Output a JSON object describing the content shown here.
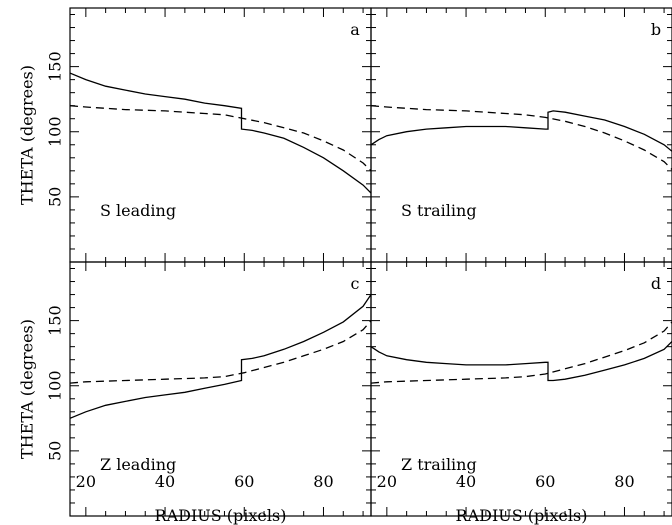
{
  "chart_data": [
    {
      "panel": "a",
      "type": "line",
      "label": "S leading",
      "xlabel": "RADIUS (pixels)",
      "ylabel": "THETA (degrees)",
      "xlim": [
        16,
        92
      ],
      "ylim": [
        0,
        195
      ],
      "xticks": [
        20,
        40,
        60,
        80
      ],
      "yticks": [
        50,
        100,
        150
      ],
      "series": [
        {
          "style": "solid",
          "x": [
            16,
            20,
            25,
            30,
            35,
            40,
            45,
            50,
            55,
            59.3,
            59.3,
            62,
            65,
            70,
            75,
            80,
            85,
            90,
            92
          ],
          "y": [
            145,
            140,
            135,
            132,
            129,
            127,
            125,
            122,
            120,
            118,
            102,
            101,
            99,
            95,
            88,
            80,
            70,
            59,
            53
          ]
        },
        {
          "style": "dashed",
          "x": [
            16,
            20,
            30,
            40,
            50,
            55,
            60,
            65,
            70,
            75,
            80,
            85,
            90,
            92
          ],
          "y": [
            120,
            119,
            117,
            116,
            114,
            113,
            110,
            107,
            103,
            99,
            93,
            86,
            76,
            70
          ]
        }
      ]
    },
    {
      "panel": "b",
      "type": "line",
      "label": "S trailing",
      "xlabel": "RADIUS (pixels)",
      "ylabel": "",
      "xlim": [
        16,
        92
      ],
      "ylim": [
        0,
        195
      ],
      "xticks": [
        20,
        40,
        60,
        80
      ],
      "yticks": [
        50,
        100,
        150
      ],
      "series": [
        {
          "style": "solid",
          "x": [
            16,
            18,
            20,
            25,
            30,
            35,
            40,
            45,
            50,
            55,
            60,
            60.7,
            60.7,
            62,
            65,
            70,
            75,
            80,
            85,
            90,
            92
          ],
          "y": [
            90,
            94,
            97,
            100,
            102,
            103,
            104,
            104,
            104,
            103,
            102,
            102,
            115,
            116,
            115,
            112,
            109,
            104,
            98,
            90,
            85
          ]
        },
        {
          "style": "dashed",
          "x": [
            16,
            20,
            30,
            40,
            50,
            55,
            60,
            65,
            70,
            75,
            80,
            85,
            90,
            92
          ],
          "y": [
            120,
            119,
            117,
            116,
            114,
            113,
            111,
            108,
            104,
            99,
            93,
            86,
            77,
            71
          ]
        }
      ]
    },
    {
      "panel": "c",
      "type": "line",
      "label": "Z leading",
      "xlabel": "RADIUS (pixels)",
      "ylabel": "THETA (degrees)",
      "xlim": [
        16,
        92
      ],
      "ylim": [
        0,
        195
      ],
      "xticks": [
        20,
        40,
        60,
        80
      ],
      "yticks": [
        50,
        100,
        150
      ],
      "series": [
        {
          "style": "solid",
          "x": [
            16,
            20,
            25,
            30,
            35,
            40,
            45,
            50,
            55,
            59.3,
            59.3,
            62,
            65,
            70,
            75,
            80,
            85,
            90,
            92
          ],
          "y": [
            75,
            80,
            85,
            88,
            91,
            93,
            95,
            98,
            101,
            104,
            120,
            121,
            123,
            128,
            134,
            141,
            149,
            161,
            170
          ]
        },
        {
          "style": "dashed",
          "x": [
            16,
            20,
            30,
            40,
            50,
            55,
            60,
            65,
            70,
            75,
            80,
            85,
            90,
            92
          ],
          "y": [
            102,
            103,
            104,
            105,
            106,
            107,
            110,
            114,
            118,
            123,
            128,
            134,
            143,
            150
          ]
        }
      ]
    },
    {
      "panel": "d",
      "type": "line",
      "label": "Z trailing",
      "xlabel": "RADIUS (pixels)",
      "ylabel": "",
      "xlim": [
        16,
        92
      ],
      "ylim": [
        0,
        195
      ],
      "xticks": [
        20,
        40,
        60,
        80
      ],
      "yticks": [
        50,
        100,
        150
      ],
      "series": [
        {
          "style": "solid",
          "x": [
            16,
            18,
            20,
            25,
            30,
            35,
            40,
            45,
            50,
            55,
            60,
            60.7,
            60.7,
            62,
            65,
            70,
            75,
            80,
            85,
            90,
            92
          ],
          "y": [
            130,
            126,
            123,
            120,
            118,
            117,
            116,
            116,
            116,
            117,
            118,
            118,
            104,
            104,
            105,
            108,
            112,
            116,
            121,
            128,
            134
          ]
        },
        {
          "style": "dashed",
          "x": [
            16,
            20,
            30,
            40,
            50,
            55,
            60,
            65,
            70,
            75,
            80,
            85,
            90,
            92
          ],
          "y": [
            102,
            103,
            104,
            105,
            106,
            107,
            109,
            113,
            117,
            122,
            127,
            133,
            142,
            149
          ]
        }
      ]
    }
  ]
}
